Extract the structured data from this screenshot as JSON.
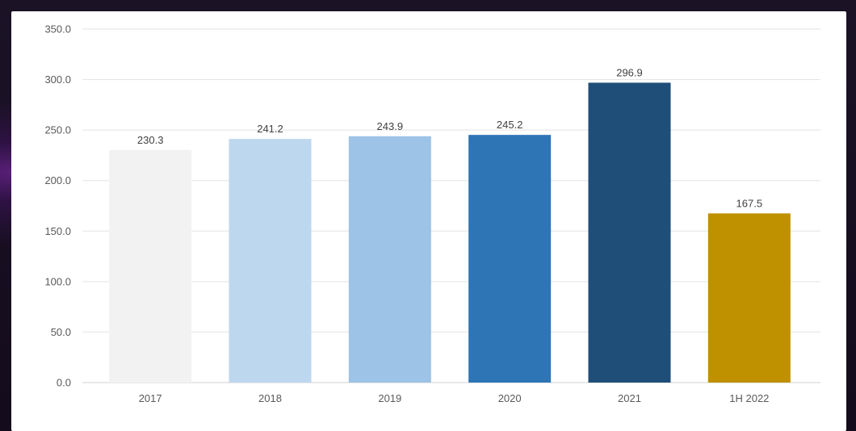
{
  "chart_data": {
    "type": "bar",
    "title": "",
    "xlabel": "",
    "ylabel": "",
    "ylim": [
      0,
      350
    ],
    "yticks": [
      "0.0",
      "50.0",
      "100.0",
      "150.0",
      "200.0",
      "250.0",
      "300.0",
      "350.0"
    ],
    "grid": true,
    "categories": [
      "2017",
      "2018",
      "2019",
      "2020",
      "2021",
      "1H 2022"
    ],
    "values": [
      230.3,
      241.2,
      243.9,
      245.2,
      296.9,
      167.5
    ],
    "value_labels": [
      "230.3",
      "241.2",
      "243.9",
      "245.2",
      "296.9",
      "167.5"
    ],
    "colors": [
      "#f2f2f2",
      "#bdd7ee",
      "#9dc3e6",
      "#2e75b6",
      "#1f4e79",
      "#bf9000"
    ],
    "gridline_color": "#e3e3e3"
  }
}
